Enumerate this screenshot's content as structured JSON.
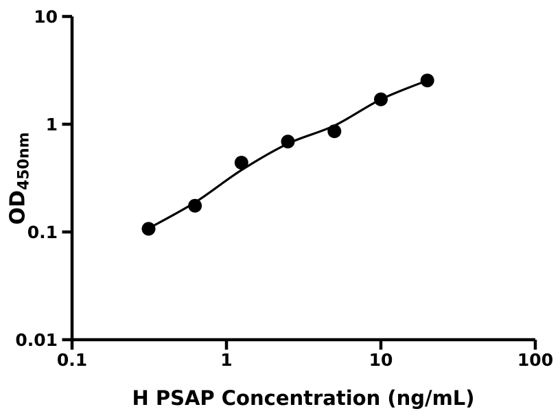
{
  "figure": {
    "background": "#ffffff"
  },
  "chart_data": {
    "type": "scatter",
    "title": "",
    "xlabel": "H PSAP Concentration (ng/mL)",
    "ylabel": "OD450nm",
    "ylabel_main": "OD",
    "ylabel_sub": "450nm",
    "x_scale": "log",
    "y_scale": "log",
    "xlim": [
      0.1,
      100
    ],
    "ylim": [
      0.01,
      10
    ],
    "x_tick_labels": [
      "0.1",
      "1",
      "10",
      "100"
    ],
    "y_tick_labels": [
      "0.01",
      "0.1",
      "1",
      "10"
    ],
    "grid": false,
    "legend": null,
    "points": {
      "x": [
        0.313,
        0.625,
        1.25,
        2.5,
        5,
        10,
        20
      ],
      "y": [
        0.107,
        0.175,
        0.44,
        0.69,
        0.86,
        1.7,
        2.55
      ]
    },
    "fit_curve": {
      "x": [
        0.313,
        0.625,
        1.25,
        2.5,
        5,
        10,
        20
      ],
      "y": [
        0.108,
        0.188,
        0.375,
        0.66,
        0.97,
        1.7,
        2.55
      ]
    },
    "colors": {
      "marker": "#000000",
      "line": "#000000",
      "axis": "#000000",
      "text": "#000000",
      "background": "#ffffff"
    }
  }
}
